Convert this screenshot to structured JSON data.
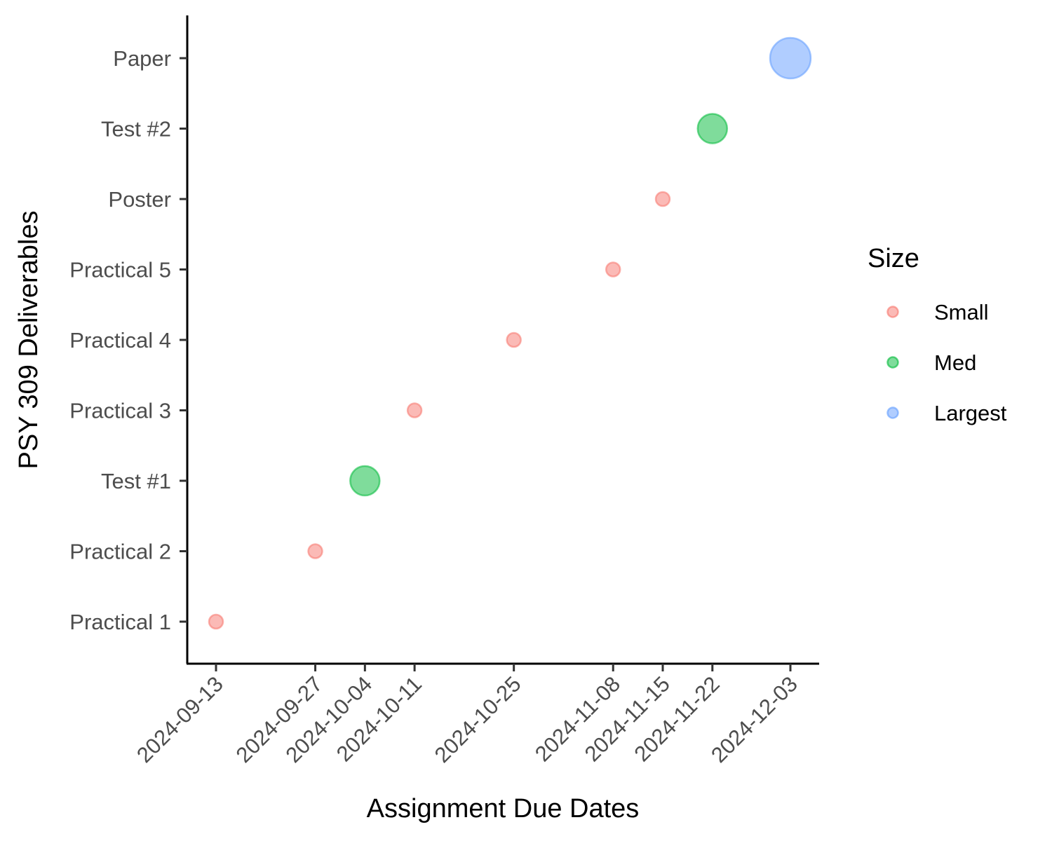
{
  "chart_data": {
    "type": "scatter",
    "title": "",
    "xlabel": "Assignment Due Dates",
    "ylabel": "PSY 309 Deliverables",
    "x_ticks": [
      "2024-09-13",
      "2024-09-27",
      "2024-10-04",
      "2024-10-11",
      "2024-10-25",
      "2024-11-08",
      "2024-11-15",
      "2024-11-22",
      "2024-12-03"
    ],
    "categories": [
      "Practical 1",
      "Practical 2",
      "Test #1",
      "Practical 3",
      "Practical 4",
      "Practical 5",
      "Poster",
      "Test #2",
      "Paper"
    ],
    "xlim": [
      "2024-09-09",
      "2024-12-07"
    ],
    "legend": {
      "title": "Size",
      "position": "right",
      "entries": [
        {
          "label": "Small",
          "color": "#f8766d"
        },
        {
          "label": "Med",
          "color": "#00ba38"
        },
        {
          "label": "Largest",
          "color": "#619cff"
        }
      ]
    },
    "points": [
      {
        "item": "Practical 1",
        "date": "2024-09-13",
        "size": "Small"
      },
      {
        "item": "Practical 2",
        "date": "2024-09-27",
        "size": "Small"
      },
      {
        "item": "Test #1",
        "date": "2024-10-04",
        "size": "Med"
      },
      {
        "item": "Practical 3",
        "date": "2024-10-11",
        "size": "Small"
      },
      {
        "item": "Practical 4",
        "date": "2024-10-25",
        "size": "Small"
      },
      {
        "item": "Practical 5",
        "date": "2024-11-08",
        "size": "Small"
      },
      {
        "item": "Poster",
        "date": "2024-11-15",
        "size": "Small"
      },
      {
        "item": "Test #2",
        "date": "2024-11-22",
        "size": "Med"
      },
      {
        "item": "Paper",
        "date": "2024-12-03",
        "size": "Largest"
      }
    ],
    "grid": false
  }
}
